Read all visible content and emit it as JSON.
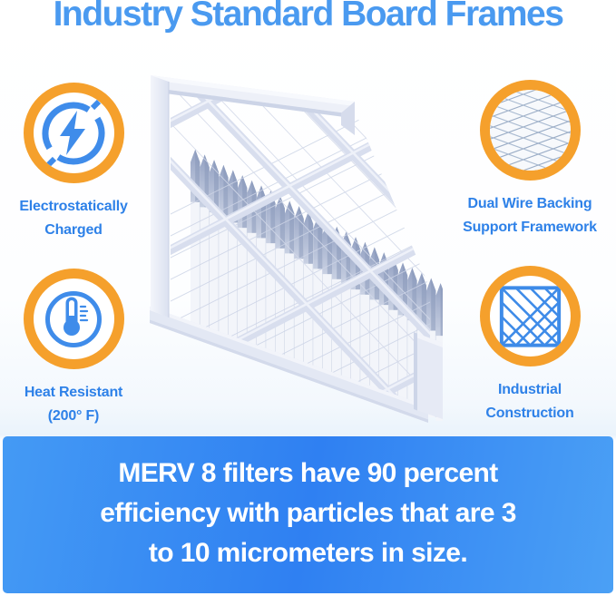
{
  "title": "Industry Standard Board Frames",
  "features": [
    {
      "id": "electrostatically-charged",
      "label_line1": "Electrostatically",
      "label_line2": "Charged"
    },
    {
      "id": "dual-wire-backing",
      "label_line1": "Dual Wire Backing",
      "label_line2": "Support Framework"
    },
    {
      "id": "heat-resistant",
      "label_line1": "Heat Resistant",
      "label_line2": "(200° F)"
    },
    {
      "id": "industrial-construction",
      "label_line1": "Industrial",
      "label_line2": "Construction"
    }
  ],
  "banner": {
    "line1": "MERV 8 filters have 90 percent",
    "line2": "efficiency with particles that are 3",
    "line3": "to 10 micrometers in size."
  },
  "illustration": {
    "alt": "Pleated air filter with industry standard board frame"
  },
  "colors": {
    "title_blue": "#4a9af0",
    "label_blue": "#2e81e8",
    "ring_orange": "#f5a02c",
    "icon_blue": "#3f8cea",
    "banner_blue_start": "#449af4",
    "banner_blue_mid": "#2f80f2",
    "banner_blue_end": "#4ba0f5"
  }
}
